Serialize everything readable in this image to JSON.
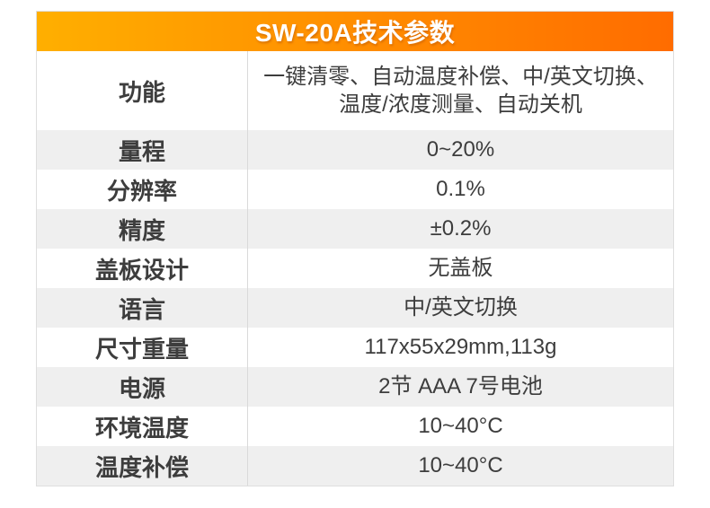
{
  "table": {
    "title": "SW-20A技术参数",
    "rows": [
      {
        "label": "功能",
        "value": "一键清零、自动温度补偿、中/英文切换、\n温度/浓度测量、自动关机"
      },
      {
        "label": "量程",
        "value": "0~20%"
      },
      {
        "label": "分辨率",
        "value": "0.1%"
      },
      {
        "label": "精度",
        "value": "±0.2%"
      },
      {
        "label": "盖板设计",
        "value": "无盖板"
      },
      {
        "label": "语言",
        "value": "中/英文切换"
      },
      {
        "label": "尺寸重量",
        "value": "117x55x29mm,113g"
      },
      {
        "label": "电源",
        "value": "2节 AAA 7号电池"
      },
      {
        "label": "环境温度",
        "value": "10~40°C"
      },
      {
        "label": "温度补偿",
        "value": "10~40°C"
      }
    ],
    "colors": {
      "header_gradient_start": "#ffaf00",
      "header_gradient_end": "#ff6c00",
      "row_bg": "#ffffff",
      "row_alt_bg": "#efefef",
      "text": "#3d3d3d",
      "header_text": "#ffffff",
      "border": "#dedede",
      "divider": "#d9d9d9"
    }
  }
}
